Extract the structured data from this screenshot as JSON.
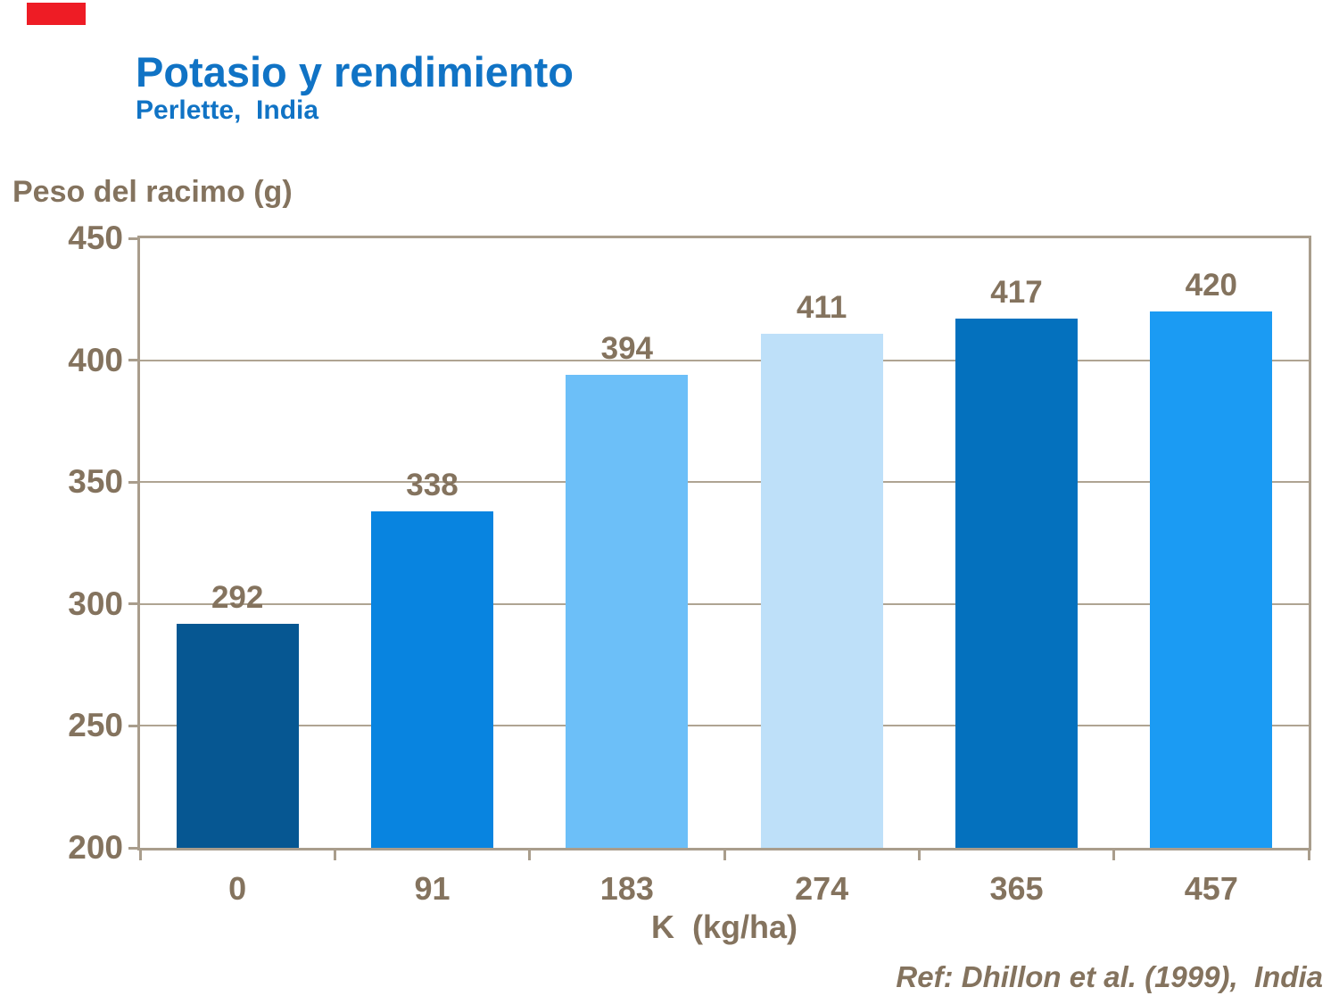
{
  "header": {
    "title": "Potasio y rendimiento",
    "subtitle": "Perlette,  India",
    "title_color": "#1073C5"
  },
  "logo": {
    "color": "#EE1C25"
  },
  "footer": {
    "reference": "Ref: Dhillon et al. (1999),  India"
  },
  "chart_data": {
    "type": "bar",
    "title": "Potasio y rendimiento",
    "subtitle": "Perlette,  India",
    "ylabel": "Peso del racimo (g)",
    "xlabel": "K  (kg/ha)",
    "categories": [
      "0",
      "91",
      "183",
      "274",
      "365",
      "457"
    ],
    "values": [
      292,
      338,
      394,
      411,
      417,
      420
    ],
    "bar_colors": [
      "#065792",
      "#0884E0",
      "#6CBFF8",
      "#BEE0F9",
      "#0471BE",
      "#1B9BF3"
    ],
    "ylim": [
      200,
      450
    ],
    "yticks": [
      200,
      250,
      300,
      350,
      400,
      450
    ],
    "grid": "horizontal",
    "legend": "none",
    "label_color": "#84735E",
    "axis_color": "#A99D8C",
    "gridline_color": "#AFA492"
  }
}
